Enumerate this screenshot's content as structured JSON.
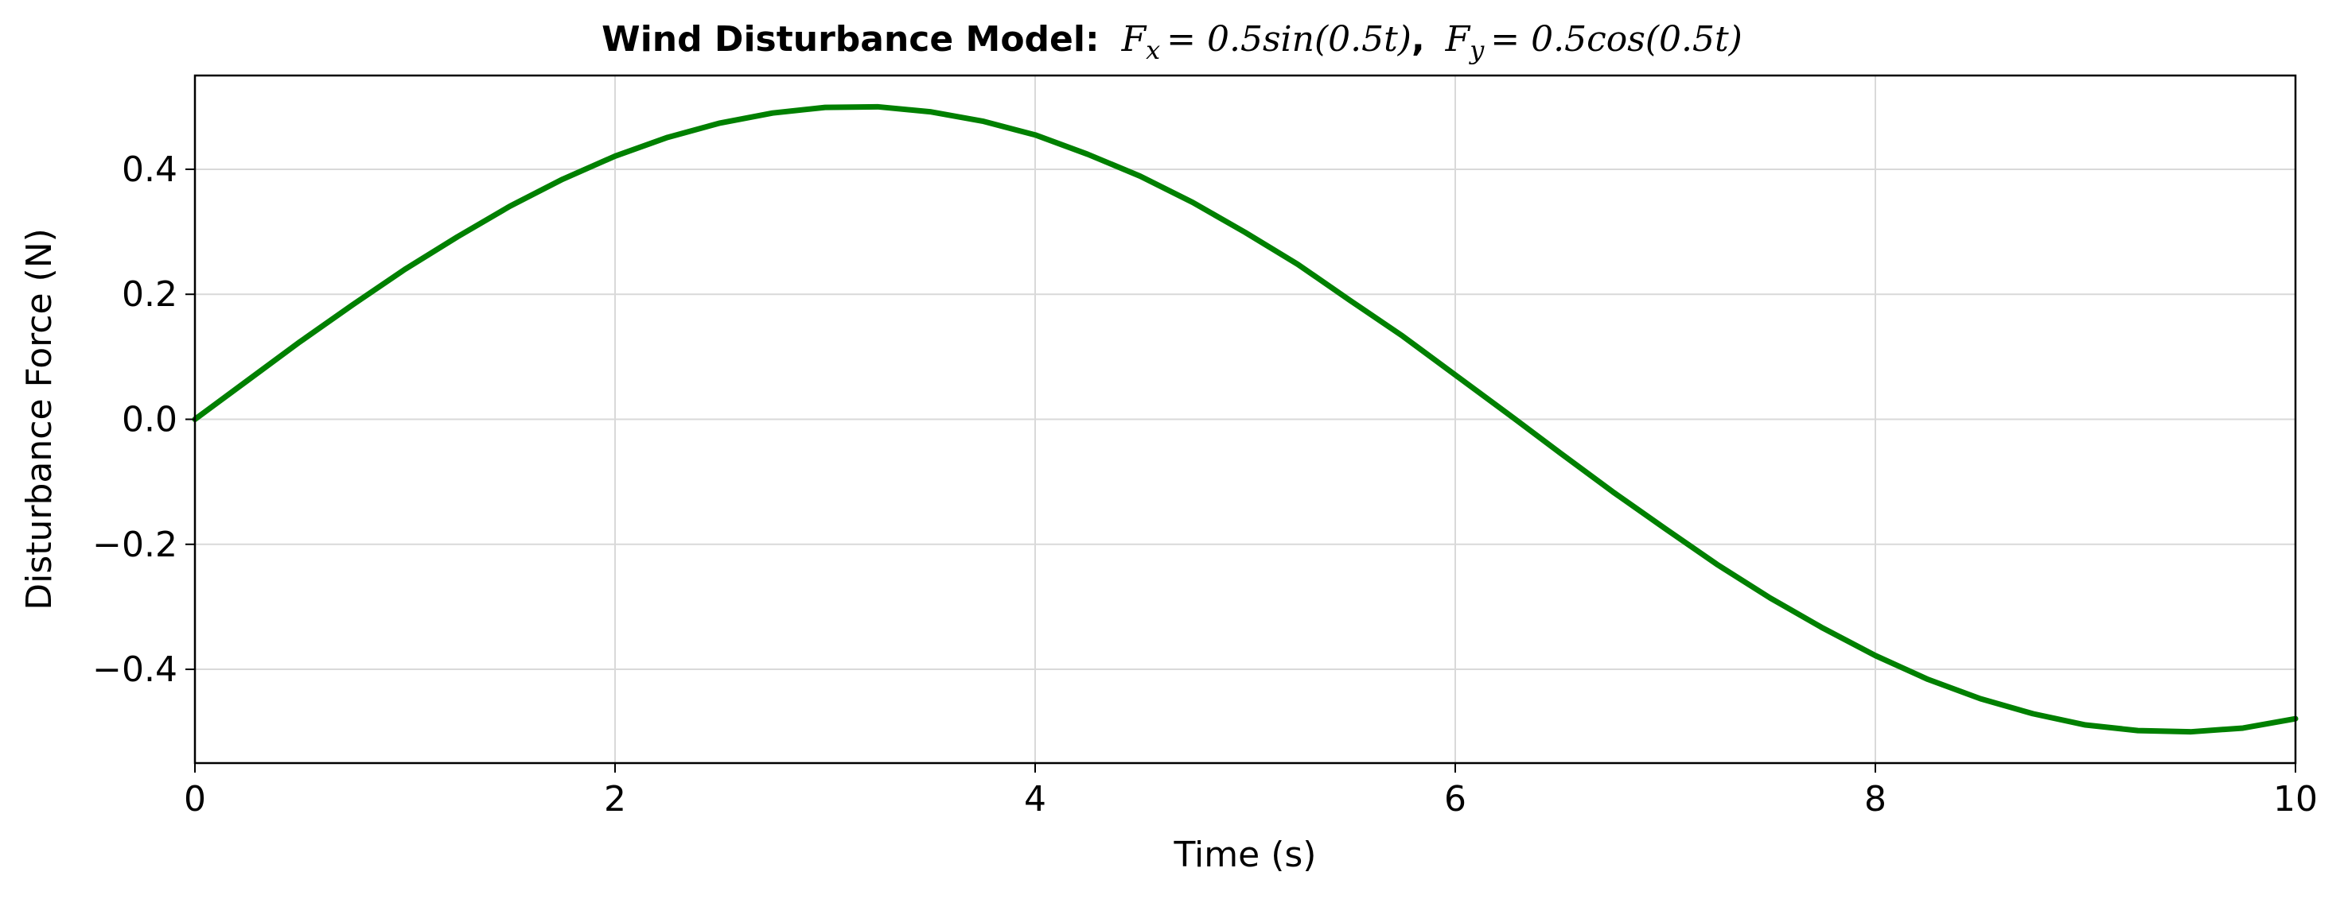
{
  "chart_data": {
    "type": "line",
    "title": {
      "bold": "Wind Disturbance Model:",
      "fx_lhs": "F",
      "fx_sub": "x",
      "fx_rhs": "= 0.5sin(0.5t)",
      "sep": ",",
      "fy_lhs": "F",
      "fy_sub": "y",
      "fy_rhs": "= 0.5cos(0.5t)"
    },
    "xlabel": "Time (s)",
    "ylabel": "Disturbance Force (N)",
    "xlim": [
      0,
      10
    ],
    "ylim": [
      -0.55,
      0.55
    ],
    "xticks": [
      0,
      2,
      4,
      6,
      8,
      10
    ],
    "xtick_labels": [
      "0",
      "2",
      "4",
      "6",
      "8",
      "10"
    ],
    "yticks": [
      -0.4,
      -0.2,
      0.0,
      0.2,
      0.4
    ],
    "ytick_labels": [
      "−0.4",
      "−0.2",
      "0.0",
      "0.2",
      "0.4"
    ],
    "grid": true,
    "series": [
      {
        "color": "#008000",
        "x": [
          0,
          0.25,
          0.5,
          0.75,
          1,
          1.25,
          1.5,
          1.75,
          2,
          2.25,
          2.5,
          2.75,
          3,
          3.25,
          3.5,
          3.75,
          4,
          4.25,
          4.5,
          4.75,
          5,
          5.25,
          5.5,
          5.75,
          6,
          6.25,
          6.5,
          6.75,
          7,
          7.25,
          7.5,
          7.75,
          8,
          8.25,
          8.5,
          8.75,
          9,
          9.25,
          9.5,
          9.75,
          10
        ],
        "y": [
          0.0,
          0.062,
          0.124,
          0.183,
          0.24,
          0.292,
          0.341,
          0.384,
          0.421,
          0.451,
          0.474,
          0.49,
          0.499,
          0.5,
          0.492,
          0.477,
          0.455,
          0.424,
          0.389,
          0.347,
          0.299,
          0.248,
          0.19,
          0.133,
          0.071,
          0.009,
          -0.054,
          -0.116,
          -0.175,
          -0.233,
          -0.286,
          -0.334,
          -0.378,
          -0.416,
          -0.447,
          -0.471,
          -0.489,
          -0.498,
          -0.5,
          -0.494,
          -0.479
        ]
      }
    ]
  }
}
